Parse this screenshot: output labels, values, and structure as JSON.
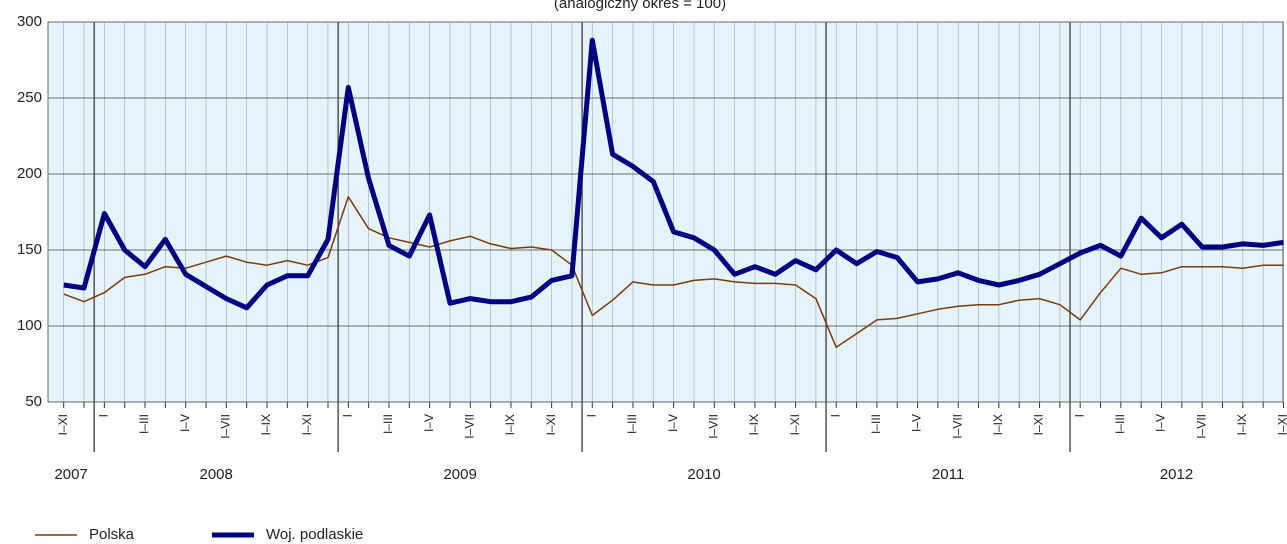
{
  "chart_data": {
    "type": "line",
    "subtitle": "(analogiczny okres = 100)",
    "categories": [
      "I–XI",
      null,
      "I",
      null,
      "I–III",
      null,
      "I–V",
      null,
      "I–VII",
      null,
      "I–IX",
      null,
      "I–XI",
      null,
      "I",
      null,
      "I–III",
      null,
      "I–V",
      null,
      "I–VII",
      null,
      "I–IX",
      null,
      "I–XI",
      null,
      "I",
      null,
      "I–III",
      null,
      "I–V",
      null,
      "I–VII",
      null,
      "I–IX",
      null,
      "I–XI",
      null,
      "I",
      null,
      "I–III",
      null,
      "I–V",
      null,
      "I–VII",
      null,
      "I–IX",
      null,
      "I–XI",
      null,
      "I",
      null,
      "I–III",
      null,
      "I–V",
      null,
      "I–VII",
      null,
      "I–IX",
      null,
      "I–XI"
    ],
    "years": [
      "2007",
      "2008",
      "2009",
      "2010",
      "2011",
      "2012"
    ],
    "series": [
      {
        "name": "Polska",
        "color": "#7a3b10",
        "width": 1.5,
        "values": [
          121,
          116,
          122,
          132,
          134,
          139,
          138,
          142,
          146,
          142,
          140,
          143,
          140,
          145,
          185,
          164,
          158,
          155,
          152,
          156,
          159,
          154,
          151,
          152,
          150,
          140,
          107,
          117,
          129,
          127,
          127,
          130,
          131,
          129,
          128,
          128,
          127,
          118,
          86,
          95,
          104,
          105,
          108,
          111,
          113,
          114,
          114,
          117,
          118,
          114,
          104,
          122,
          138,
          134,
          135,
          139,
          139,
          139,
          138,
          140,
          140
        ]
      },
      {
        "name": "Woj. podlaskie",
        "color": "#000080",
        "width": 5,
        "values": [
          127,
          125,
          174,
          150,
          139,
          157,
          134,
          126,
          118,
          112,
          127,
          133,
          133,
          157,
          257,
          197,
          153,
          146,
          173,
          115,
          118,
          116,
          116,
          119,
          130,
          133,
          288,
          213,
          205,
          195,
          162,
          158,
          150,
          134,
          139,
          134,
          143,
          137,
          150,
          141,
          149,
          145,
          129,
          131,
          135,
          130,
          127,
          130,
          134,
          141,
          148,
          153,
          146,
          171,
          158,
          167,
          152,
          152,
          154,
          153,
          155
        ]
      }
    ],
    "ylim": [
      50,
      300
    ],
    "yticks": [
      50,
      100,
      150,
      200,
      250,
      300
    ],
    "grid": true
  }
}
